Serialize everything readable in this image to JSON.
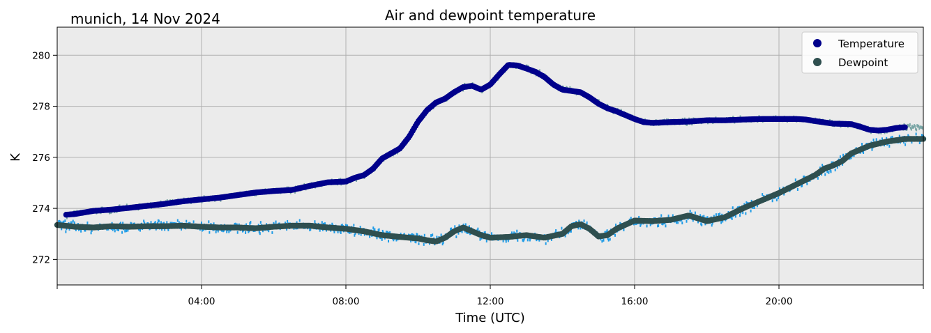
{
  "header": {
    "location_date": "munich, 14 Nov 2024"
  },
  "chart_data": {
    "type": "scatter",
    "title": "Air and dewpoint temperature",
    "xlabel": "Time (UTC)",
    "ylabel": "K",
    "xlim": [
      0,
      24
    ],
    "ylim": [
      271.0,
      281.1
    ],
    "x_ticks": [
      0,
      4,
      8,
      12,
      16,
      20,
      24
    ],
    "x_tick_labels": [
      "",
      "04:00",
      "08:00",
      "12:00",
      "16:00",
      "20:00",
      ""
    ],
    "y_ticks": [
      272,
      274,
      276,
      278,
      280
    ],
    "y_tick_labels": [
      "272",
      "274",
      "276",
      "278",
      "280"
    ],
    "grid": true,
    "legend_position": "top-right",
    "background_color": "#ebebeb",
    "series": [
      {
        "name": "Temperature",
        "color": "#00008b",
        "raw_color": "#7aa6a6",
        "x": [
          0.25,
          0.5,
          1,
          1.5,
          2,
          2.5,
          3,
          3.5,
          4,
          4.5,
          5,
          5.5,
          6,
          6.5,
          7,
          7.5,
          8,
          8.25,
          8.5,
          8.75,
          9,
          9.25,
          9.5,
          9.75,
          10,
          10.25,
          10.5,
          10.75,
          11,
          11.25,
          11.5,
          11.75,
          12,
          12.25,
          12.5,
          12.75,
          13,
          13.25,
          13.5,
          13.75,
          14,
          14.25,
          14.5,
          14.75,
          15,
          15.25,
          15.5,
          15.75,
          16,
          16.25,
          16.5,
          17,
          17.5,
          18,
          18.5,
          19,
          19.5,
          20,
          20.5,
          20.75,
          21,
          21.5,
          22,
          22.25,
          22.5,
          22.75,
          23,
          23.25,
          23.5
        ],
        "values": [
          273.75,
          273.78,
          273.9,
          273.95,
          274.02,
          274.1,
          274.18,
          274.28,
          274.35,
          274.42,
          274.52,
          274.62,
          274.68,
          274.72,
          274.88,
          275.02,
          275.05,
          275.2,
          275.3,
          275.55,
          275.95,
          276.15,
          276.35,
          276.8,
          277.4,
          277.85,
          278.15,
          278.3,
          278.55,
          278.75,
          278.8,
          278.65,
          278.85,
          279.25,
          279.62,
          279.6,
          279.48,
          279.35,
          279.15,
          278.85,
          278.65,
          278.6,
          278.55,
          278.35,
          278.1,
          277.92,
          277.8,
          277.65,
          277.5,
          277.38,
          277.35,
          277.38,
          277.4,
          277.45,
          277.45,
          277.48,
          277.5,
          277.5,
          277.5,
          277.48,
          277.42,
          277.32,
          277.3,
          277.2,
          277.08,
          277.05,
          277.08,
          277.15,
          277.18
        ]
      },
      {
        "name": "Dewpoint",
        "color": "#2f4f4f",
        "raw_color": "#1e9be6",
        "x": [
          0,
          0.5,
          1,
          1.5,
          2,
          2.5,
          3,
          3.5,
          4,
          4.5,
          5,
          5.5,
          6,
          6.5,
          7,
          7.5,
          8,
          8.5,
          9,
          9.5,
          10,
          10.25,
          10.5,
          10.75,
          11,
          11.25,
          11.5,
          11.75,
          12,
          12.5,
          13,
          13.5,
          14,
          14.25,
          14.5,
          14.75,
          15,
          15.25,
          15.5,
          16,
          16.5,
          17,
          17.5,
          18,
          18.5,
          19,
          19.5,
          20,
          20.5,
          21,
          21.25,
          21.5,
          21.75,
          22,
          22.5,
          23,
          23.5,
          24
        ],
        "values": [
          273.35,
          273.28,
          273.25,
          273.3,
          273.28,
          273.3,
          273.3,
          273.32,
          273.28,
          273.25,
          273.25,
          273.22,
          273.28,
          273.32,
          273.32,
          273.25,
          273.2,
          273.1,
          272.95,
          272.88,
          272.82,
          272.75,
          272.7,
          272.85,
          273.1,
          273.25,
          273.1,
          272.95,
          272.85,
          272.88,
          272.95,
          272.85,
          273.0,
          273.3,
          273.38,
          273.2,
          272.9,
          272.95,
          273.2,
          273.52,
          273.5,
          273.55,
          273.72,
          273.5,
          273.65,
          274.0,
          274.3,
          274.6,
          274.95,
          275.3,
          275.55,
          275.68,
          275.85,
          276.15,
          276.45,
          276.62,
          276.72,
          276.72
        ]
      }
    ]
  }
}
